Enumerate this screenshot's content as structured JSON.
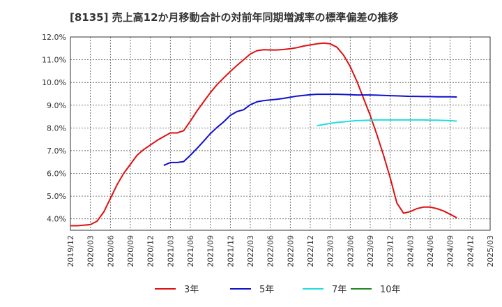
{
  "chart_data": {
    "type": "line",
    "title": "[8135]  売上高12か月移動合計の対前年同期増減率の標準偏差の推移",
    "xlabel": "",
    "ylabel": "",
    "x_ticks": [
      "2019/12",
      "2020/03",
      "2020/06",
      "2020/09",
      "2020/12",
      "2021/03",
      "2021/06",
      "2021/09",
      "2021/12",
      "2022/03",
      "2022/06",
      "2022/09",
      "2022/12",
      "2023/03",
      "2023/06",
      "2023/09",
      "2023/12",
      "2024/03",
      "2024/06",
      "2024/09",
      "2024/12",
      "2025/03"
    ],
    "y_ticks": [
      "4.0%",
      "5.0%",
      "6.0%",
      "7.0%",
      "8.0%",
      "9.0%",
      "10.0%",
      "11.0%",
      "12.0%"
    ],
    "ylim": [
      3.5,
      12.0
    ],
    "grid": true,
    "legend_position": "bottom",
    "series": [
      {
        "name": "3年",
        "color": "#dd1111",
        "values": [
          [
            "2019/12",
            3.7
          ],
          [
            "2020/01",
            3.7
          ],
          [
            "2020/02",
            3.72
          ],
          [
            "2020/03",
            3.75
          ],
          [
            "2020/04",
            3.9
          ],
          [
            "2020/05",
            4.3
          ],
          [
            "2020/06",
            4.9
          ],
          [
            "2020/07",
            5.5
          ],
          [
            "2020/08",
            6.0
          ],
          [
            "2020/09",
            6.4
          ],
          [
            "2020/10",
            6.8
          ],
          [
            "2020/11",
            7.05
          ],
          [
            "2020/12",
            7.25
          ],
          [
            "2021/01",
            7.45
          ],
          [
            "2021/02",
            7.62
          ],
          [
            "2021/03",
            7.78
          ],
          [
            "2021/04",
            7.78
          ],
          [
            "2021/05",
            7.88
          ],
          [
            "2021/06",
            8.3
          ],
          [
            "2021/07",
            8.75
          ],
          [
            "2021/08",
            9.15
          ],
          [
            "2021/09",
            9.55
          ],
          [
            "2021/10",
            9.9
          ],
          [
            "2021/11",
            10.2
          ],
          [
            "2021/12",
            10.48
          ],
          [
            "2021/12",
            10.48
          ],
          [
            "2022/01",
            10.75
          ],
          [
            "2022/02",
            11.0
          ],
          [
            "2022/03",
            11.25
          ],
          [
            "2022/04",
            11.4
          ],
          [
            "2022/05",
            11.44
          ],
          [
            "2022/06",
            11.43
          ],
          [
            "2022/07",
            11.43
          ],
          [
            "2022/08",
            11.45
          ],
          [
            "2022/09",
            11.48
          ],
          [
            "2022/10",
            11.53
          ],
          [
            "2022/11",
            11.6
          ],
          [
            "2022/12",
            11.65
          ],
          [
            "2023/01",
            11.7
          ],
          [
            "2023/02",
            11.73
          ],
          [
            "2023/03",
            11.7
          ],
          [
            "2023/04",
            11.55
          ],
          [
            "2023/05",
            11.2
          ],
          [
            "2023/06",
            10.7
          ],
          [
            "2023/07",
            10.05
          ],
          [
            "2023/08",
            9.3
          ],
          [
            "2023/09",
            8.55
          ],
          [
            "2023/10",
            7.7
          ],
          [
            "2023/11",
            6.8
          ],
          [
            "2023/12",
            5.8
          ],
          [
            "2024/01",
            4.7
          ],
          [
            "2024/02",
            4.25
          ],
          [
            "2024/03",
            4.32
          ],
          [
            "2024/04",
            4.45
          ],
          [
            "2024/05",
            4.52
          ],
          [
            "2024/06",
            4.52
          ],
          [
            "2024/07",
            4.45
          ],
          [
            "2024/08",
            4.35
          ],
          [
            "2024/09",
            4.2
          ],
          [
            "2024/10",
            4.05
          ]
        ]
      },
      {
        "name": "5年",
        "color": "#1111cc",
        "values": [
          [
            "2021/02",
            6.35
          ],
          [
            "2021/03",
            6.48
          ],
          [
            "2021/04",
            6.48
          ],
          [
            "2021/05",
            6.52
          ],
          [
            "2021/06",
            6.8
          ],
          [
            "2021/07",
            7.1
          ],
          [
            "2021/08",
            7.42
          ],
          [
            "2021/09",
            7.75
          ],
          [
            "2021/10",
            8.02
          ],
          [
            "2021/11",
            8.27
          ],
          [
            "2021/12",
            8.55
          ],
          [
            "2022/01",
            8.72
          ],
          [
            "2022/02",
            8.8
          ],
          [
            "2022/03",
            9.02
          ],
          [
            "2022/04",
            9.15
          ],
          [
            "2022/05",
            9.2
          ],
          [
            "2022/06",
            9.23
          ],
          [
            "2022/07",
            9.26
          ],
          [
            "2022/08",
            9.3
          ],
          [
            "2022/09",
            9.35
          ],
          [
            "2022/10",
            9.4
          ],
          [
            "2022/11",
            9.43
          ],
          [
            "2022/12",
            9.46
          ],
          [
            "2023/01",
            9.48
          ],
          [
            "2023/02",
            9.48
          ],
          [
            "2023/03",
            9.48
          ],
          [
            "2023/04",
            9.48
          ],
          [
            "2023/05",
            9.47
          ],
          [
            "2023/06",
            9.46
          ],
          [
            "2023/07",
            9.45
          ],
          [
            "2023/08",
            9.45
          ],
          [
            "2023/09",
            9.45
          ],
          [
            "2023/10",
            9.44
          ],
          [
            "2023/11",
            9.43
          ],
          [
            "2023/12",
            9.42
          ],
          [
            "2024/01",
            9.41
          ],
          [
            "2024/02",
            9.4
          ],
          [
            "2024/03",
            9.39
          ],
          [
            "2024/04",
            9.39
          ],
          [
            "2024/05",
            9.38
          ],
          [
            "2024/06",
            9.38
          ],
          [
            "2024/07",
            9.37
          ],
          [
            "2024/08",
            9.37
          ],
          [
            "2024/09",
            9.37
          ],
          [
            "2024/10",
            9.36
          ]
        ]
      },
      {
        "name": "7年",
        "color": "#22dddd",
        "values": [
          [
            "2023/01",
            8.1
          ],
          [
            "2023/02",
            8.15
          ],
          [
            "2023/03",
            8.2
          ],
          [
            "2023/04",
            8.24
          ],
          [
            "2023/05",
            8.27
          ],
          [
            "2023/06",
            8.3
          ],
          [
            "2023/07",
            8.32
          ],
          [
            "2023/08",
            8.33
          ],
          [
            "2023/09",
            8.34
          ],
          [
            "2023/10",
            8.35
          ],
          [
            "2023/11",
            8.35
          ],
          [
            "2023/12",
            8.35
          ],
          [
            "2024/01",
            8.35
          ],
          [
            "2024/02",
            8.35
          ],
          [
            "2024/03",
            8.35
          ],
          [
            "2024/04",
            8.35
          ],
          [
            "2024/05",
            8.35
          ],
          [
            "2024/06",
            8.34
          ],
          [
            "2024/07",
            8.34
          ],
          [
            "2024/08",
            8.33
          ],
          [
            "2024/09",
            8.32
          ],
          [
            "2024/10",
            8.3
          ]
        ]
      },
      {
        "name": "10年",
        "color": "#228822",
        "values": []
      }
    ]
  }
}
